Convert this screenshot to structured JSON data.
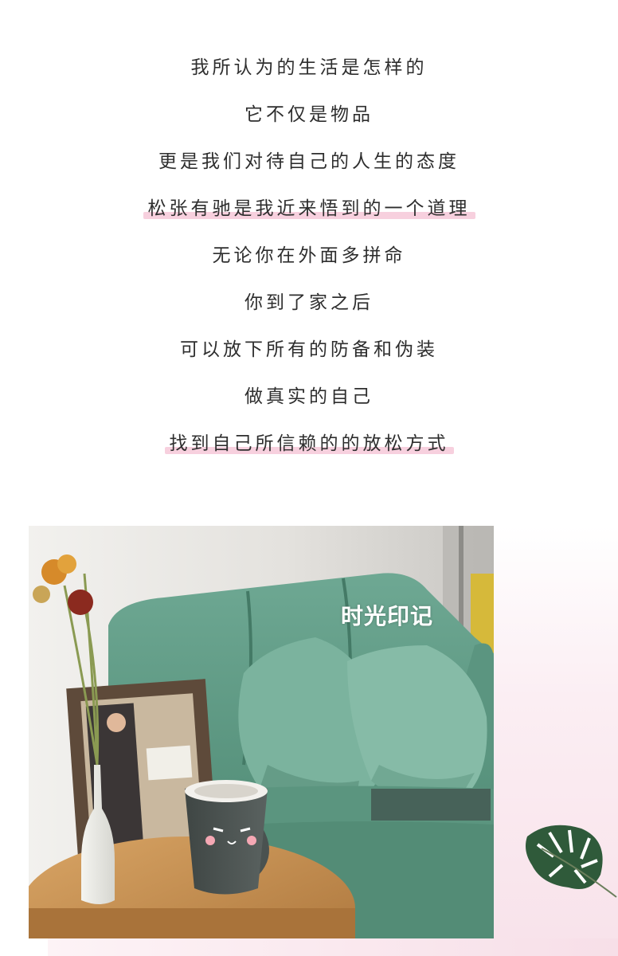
{
  "poem": {
    "lines": [
      {
        "text": "我所认为的生活是怎样的",
        "highlight": false
      },
      {
        "text": "它不仅是物品",
        "highlight": false
      },
      {
        "text": "更是我们对待自己的人生的态度",
        "highlight": false
      },
      {
        "text": "松张有驰是我近来悟到的一个道理",
        "highlight": true
      },
      {
        "text": "无论你在外面多拼命",
        "highlight": false
      },
      {
        "text": "你到了家之后",
        "highlight": false
      },
      {
        "text": "可以放下所有的防备和伪装",
        "highlight": false
      },
      {
        "text": "做真实的自己",
        "highlight": false
      },
      {
        "text": "找到自己所信赖的的放松方式",
        "highlight": true
      }
    ]
  },
  "photo": {
    "watermark": "时光印记",
    "colors": {
      "sofa": "#5f9a84",
      "wall": "#eceae6",
      "table": "#c58c4b",
      "mug": "#4a5250"
    },
    "icons": [
      "sofa",
      "cushion",
      "vase",
      "flower",
      "picture-frame",
      "mug",
      "table"
    ]
  },
  "decor": {
    "leaf_icon": "monstera-leaf-icon",
    "highlight_color": "#f0aac3"
  }
}
